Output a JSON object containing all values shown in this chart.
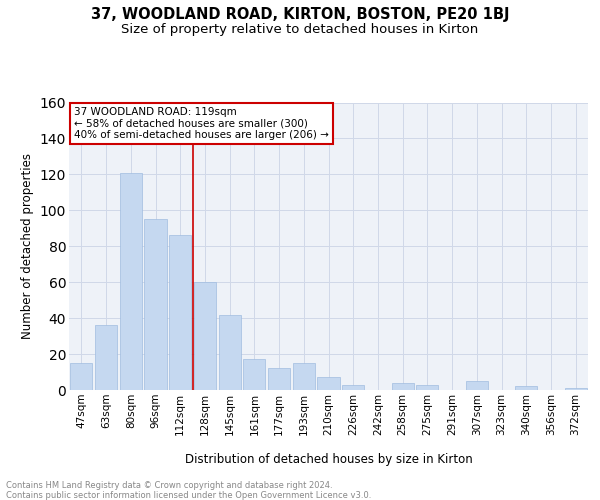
{
  "title": "37, WOODLAND ROAD, KIRTON, BOSTON, PE20 1BJ",
  "subtitle": "Size of property relative to detached houses in Kirton",
  "xlabel": "Distribution of detached houses by size in Kirton",
  "ylabel": "Number of detached properties",
  "categories": [
    "47sqm",
    "63sqm",
    "80sqm",
    "96sqm",
    "112sqm",
    "128sqm",
    "145sqm",
    "161sqm",
    "177sqm",
    "193sqm",
    "210sqm",
    "226sqm",
    "242sqm",
    "258sqm",
    "275sqm",
    "291sqm",
    "307sqm",
    "323sqm",
    "340sqm",
    "356sqm",
    "372sqm"
  ],
  "values": [
    15,
    36,
    121,
    95,
    86,
    60,
    42,
    17,
    12,
    15,
    7,
    3,
    0,
    4,
    3,
    0,
    5,
    0,
    2,
    0,
    1
  ],
  "bar_color": "#c5d8f0",
  "bar_edge_color": "#a0bce0",
  "annotation_title": "37 WOODLAND ROAD: 119sqm",
  "annotation_line1": "← 58% of detached houses are smaller (300)",
  "annotation_line2": "40% of semi-detached houses are larger (206) →",
  "annotation_box_color": "#ffffff",
  "annotation_box_edge": "#cc0000",
  "vline_color": "#cc0000",
  "vline_position": 4.5,
  "grid_color": "#d0d8e8",
  "background_color": "#eef2f8",
  "footer": "Contains HM Land Registry data © Crown copyright and database right 2024.\nContains public sector information licensed under the Open Government Licence v3.0.",
  "ylim": [
    0,
    160
  ],
  "yticks": [
    0,
    20,
    40,
    60,
    80,
    100,
    120,
    140,
    160
  ],
  "title_fontsize": 10.5,
  "subtitle_fontsize": 9.5,
  "axis_label_fontsize": 8.5,
  "tick_fontsize": 7.5,
  "footer_fontsize": 6.0,
  "annotation_fontsize": 7.5
}
